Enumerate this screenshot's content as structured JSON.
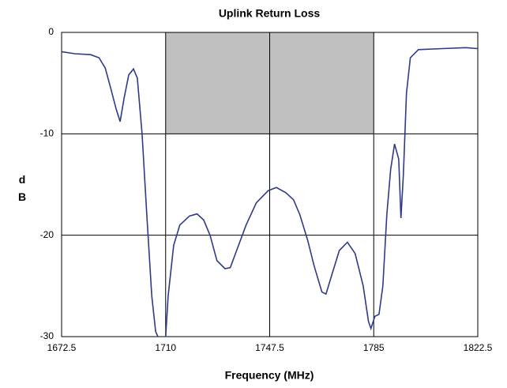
{
  "chart_data": {
    "type": "line",
    "title": "Uplink Return Loss",
    "xlabel": "Frequency (MHz)",
    "ylabel": "dB",
    "x": [
      1672.5,
      1677.3,
      1683,
      1686,
      1688.2,
      1690.2,
      1692.1,
      1693.6,
      1695,
      1696.7,
      1698.4,
      1699.8,
      1701.5,
      1703.2,
      1705,
      1706.4,
      1707.2,
      1708.5,
      1710,
      1710.9,
      1712.9,
      1715.1,
      1718.6,
      1721.3,
      1723.7,
      1726,
      1728.5,
      1731.4,
      1733.3,
      1735.6,
      1739,
      1742.7,
      1747,
      1749.9,
      1753.3,
      1756.1,
      1758.4,
      1761.2,
      1763.5,
      1766.3,
      1767.8,
      1769.8,
      1772.6,
      1775.5,
      1778.3,
      1781.2,
      1783.1,
      1784,
      1785.4,
      1786.9,
      1788.3,
      1789.7,
      1791.1,
      1792.5,
      1794,
      1794.8,
      1795.7,
      1796.8,
      1798.2,
      1801.1,
      1809.7,
      1818.2,
      1822.5
    ],
    "series": [
      {
        "name": "Return Loss",
        "color": "#2e3a87",
        "values": [
          -1.9,
          -2.1,
          -2.2,
          -2.5,
          -3.5,
          -5.5,
          -7.5,
          -8.8,
          -6.5,
          -4.2,
          -3.6,
          -4.5,
          -10,
          -18,
          -26,
          -29.5,
          -30,
          null,
          -30,
          -26,
          -21,
          -19,
          -18.1,
          -17.9,
          -18.5,
          -20,
          -22.5,
          -23.3,
          -23.2,
          -21.5,
          -19,
          -16.8,
          -15.6,
          -15.3,
          -15.8,
          -16.5,
          -18,
          -20.5,
          -23,
          -25.6,
          -25.8,
          -24,
          -21.5,
          -20.7,
          -21.8,
          -25,
          -28.5,
          -29.2,
          -28,
          -27.8,
          -25,
          -18,
          -13.5,
          -11,
          -12.5,
          -18.3,
          -14,
          -6,
          -2.5,
          -1.7,
          -1.6,
          -1.5,
          -1.6
        ]
      }
    ],
    "xlim": [
      1672.5,
      1822.5
    ],
    "xticks": [
      1672.5,
      1710,
      1747.5,
      1785,
      1822.5
    ],
    "ylim": [
      -30,
      0
    ],
    "yticks": [
      0,
      -10,
      -20,
      -30
    ],
    "shaded_region": {
      "x": [
        1710,
        1785
      ],
      "y": [
        -10,
        0
      ],
      "color": "#c0c0c0"
    },
    "grid": true
  }
}
